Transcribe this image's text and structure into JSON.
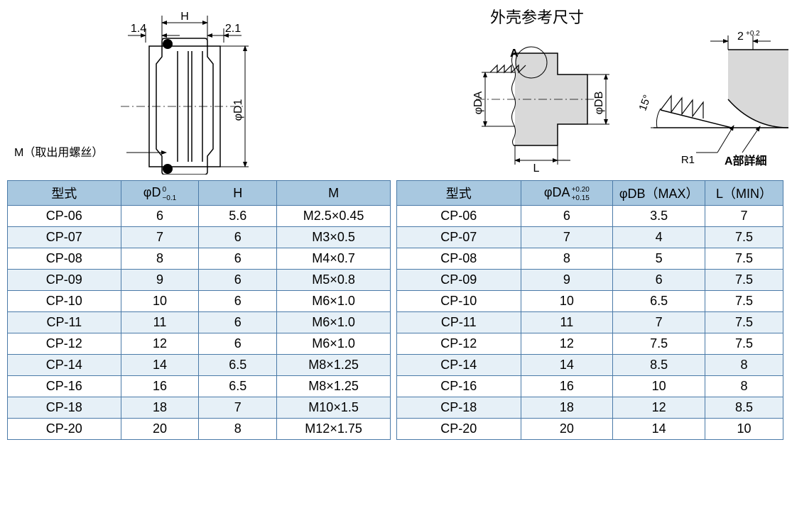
{
  "colors": {
    "header_bg": "#a8c8e0",
    "alt_row_bg": "#e6f0f7",
    "border": "#4a7aa8",
    "text": "#000000",
    "diagram_gray": "#d9d9d9",
    "diagram_stroke": "#000000"
  },
  "diagram_left": {
    "dim_left": "1.4",
    "dim_H": "H",
    "dim_right": "2.1",
    "dim_D1": "φD1",
    "label_M": "M（取出用螺丝）"
  },
  "diagram_right": {
    "title": "外壳参考尺寸",
    "label_A": "A",
    "dim_DA": "φDA",
    "dim_DB": "φDB",
    "dim_L": "L",
    "dim_2": "2",
    "tol_2": "+0.2",
    "angle_15": "15°",
    "label_R1": "R1",
    "label_detail": "A部詳細"
  },
  "table_left": {
    "headers": [
      "型式",
      "φD",
      "H",
      "M"
    ],
    "header_tol": {
      "col2_top": " 0",
      "col2_bottom": "−0.1"
    },
    "rows": [
      [
        "CP-06",
        "6",
        "5.6",
        "M2.5×0.45"
      ],
      [
        "CP-07",
        "7",
        "6",
        "M3×0.5"
      ],
      [
        "CP-08",
        "8",
        "6",
        "M4×0.7"
      ],
      [
        "CP-09",
        "9",
        "6",
        "M5×0.8"
      ],
      [
        "CP-10",
        "10",
        "6",
        "M6×1.0"
      ],
      [
        "CP-11",
        "11",
        "6",
        "M6×1.0"
      ],
      [
        "CP-12",
        "12",
        "6",
        "M6×1.0"
      ],
      [
        "CP-14",
        "14",
        "6.5",
        "M8×1.25"
      ],
      [
        "CP-16",
        "16",
        "6.5",
        "M8×1.25"
      ],
      [
        "CP-18",
        "18",
        "7",
        "M10×1.5"
      ],
      [
        "CP-20",
        "20",
        "8",
        "M12×1.75"
      ]
    ]
  },
  "table_right": {
    "headers": [
      "型式",
      "φDA",
      "φDB（MAX）",
      "L（MIN）"
    ],
    "header_tol": {
      "col2_top": "+0.20",
      "col2_bottom": "+0.15"
    },
    "rows": [
      [
        "CP-06",
        "6",
        "3.5",
        "7"
      ],
      [
        "CP-07",
        "7",
        "4",
        "7.5"
      ],
      [
        "CP-08",
        "8",
        "5",
        "7.5"
      ],
      [
        "CP-09",
        "9",
        "6",
        "7.5"
      ],
      [
        "CP-10",
        "10",
        "6.5",
        "7.5"
      ],
      [
        "CP-11",
        "11",
        "7",
        "7.5"
      ],
      [
        "CP-12",
        "12",
        "7.5",
        "7.5"
      ],
      [
        "CP-14",
        "14",
        "8.5",
        "8"
      ],
      [
        "CP-16",
        "16",
        "10",
        "8"
      ],
      [
        "CP-18",
        "18",
        "12",
        "8.5"
      ],
      [
        "CP-20",
        "20",
        "14",
        "10"
      ]
    ]
  }
}
